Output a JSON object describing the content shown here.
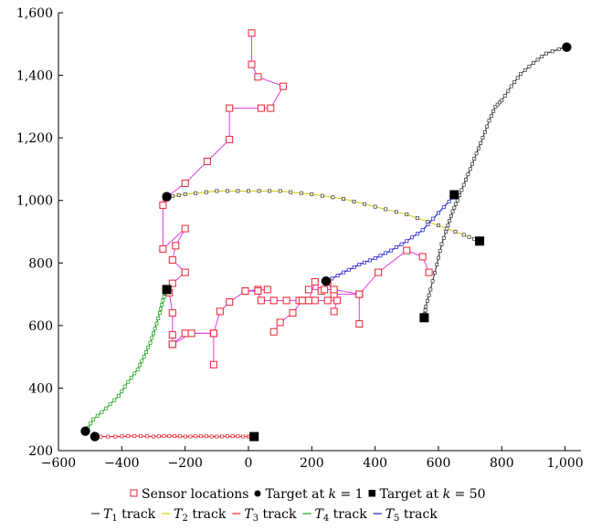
{
  "chart_data": {
    "type": "scatter",
    "title": "",
    "xlabel": "",
    "ylabel": "",
    "xlim": [
      -600,
      1050
    ],
    "ylim": [
      200,
      1600
    ],
    "x_ticks": [
      -600,
      -400,
      -200,
      0,
      200,
      400,
      600,
      800,
      1000
    ],
    "y_ticks": [
      200,
      400,
      600,
      800,
      1000,
      1200,
      1400,
      1600
    ],
    "x_tick_labels": [
      "−600",
      "−400",
      "−200",
      "0",
      "200",
      "400",
      "600",
      "800",
      "1,000"
    ],
    "y_tick_labels": [
      "200",
      "400",
      "600",
      "800",
      "1,000",
      "1,200",
      "1,400",
      "1,600"
    ],
    "grid": false,
    "legend_placement": "bottom",
    "legend": {
      "row1": [
        {
          "label": "Sensor locations",
          "marker": "open-square",
          "color": "#e8212e"
        },
        {
          "label": "Target at",
          "math": "k",
          "eq": " = 1",
          "marker": "filled-circle",
          "color": "#000000"
        },
        {
          "label": "Target at",
          "math": "k",
          "eq": " = 50",
          "marker": "filled-square",
          "color": "#000000"
        }
      ],
      "row2": [
        {
          "name": "T",
          "sub": "1",
          "suffix": " track",
          "color": "#333333"
        },
        {
          "name": "T",
          "sub": "2",
          "suffix": " track",
          "color": "#d4cf16"
        },
        {
          "name": "T",
          "sub": "3",
          "suffix": " track",
          "color": "#e8212e"
        },
        {
          "name": "T",
          "sub": "4",
          "suffix": " track",
          "color": "#12a012"
        },
        {
          "name": "T",
          "sub": "5",
          "suffix": " track",
          "color": "#1515d6"
        }
      ]
    },
    "sensor_paths": {
      "color": "#e8212e",
      "line_color": "#e23be4",
      "paths": [
        [
          [
            10,
            1535
          ],
          [
            10,
            1435
          ],
          [
            30,
            1395
          ],
          [
            110,
            1365
          ],
          [
            70,
            1295
          ],
          [
            40,
            1295
          ],
          [
            -60,
            1295
          ],
          [
            -60,
            1195
          ],
          [
            -130,
            1125
          ],
          [
            -200,
            1055
          ],
          [
            -260,
            1010
          ],
          [
            -270,
            985
          ],
          [
            -270,
            845
          ],
          [
            -200,
            910
          ],
          [
            -230,
            855
          ],
          [
            -240,
            810
          ],
          [
            -200,
            770
          ],
          [
            -240,
            735
          ],
          [
            -250,
            705
          ],
          [
            -240,
            640
          ],
          [
            -240,
            570
          ],
          [
            -240,
            540
          ],
          [
            -200,
            575
          ],
          [
            -110,
            575
          ],
          [
            -110,
            475
          ]
        ],
        [
          [
            -240,
            540
          ],
          [
            -180,
            575
          ],
          [
            -110,
            575
          ],
          [
            -90,
            645
          ],
          [
            -60,
            675
          ],
          [
            -10,
            710
          ],
          [
            30,
            715
          ],
          [
            60,
            715
          ],
          [
            -10,
            710
          ],
          [
            30,
            710
          ],
          [
            40,
            680
          ],
          [
            80,
            680
          ],
          [
            120,
            680
          ],
          [
            160,
            680
          ],
          [
            180,
            680
          ],
          [
            210,
            680
          ],
          [
            250,
            680
          ],
          [
            280,
            680
          ],
          [
            270,
            645
          ]
        ],
        [
          [
            80,
            580
          ],
          [
            100,
            610
          ],
          [
            140,
            640
          ],
          [
            170,
            680
          ],
          [
            190,
            680
          ],
          [
            210,
            740
          ],
          [
            230,
            710
          ],
          [
            250,
            740
          ],
          [
            270,
            700
          ],
          [
            350,
            700
          ],
          [
            410,
            770
          ],
          [
            500,
            840
          ],
          [
            550,
            820
          ],
          [
            570,
            770
          ]
        ],
        [
          [
            190,
            715
          ],
          [
            240,
            715
          ],
          [
            270,
            715
          ],
          [
            350,
            700
          ],
          [
            350,
            605
          ]
        ]
      ]
    },
    "tracks": [
      {
        "name": "T1",
        "color": "#333333",
        "points": [
          [
            555,
            625
          ],
          [
            560,
            660
          ],
          [
            575,
            715
          ],
          [
            595,
            795
          ],
          [
            610,
            860
          ],
          [
            630,
            920
          ],
          [
            645,
            965
          ],
          [
            660,
            1000
          ],
          [
            680,
            1050
          ],
          [
            700,
            1100
          ],
          [
            720,
            1150
          ],
          [
            740,
            1200
          ],
          [
            760,
            1255
          ],
          [
            780,
            1300
          ],
          [
            800,
            1320
          ],
          [
            830,
            1365
          ],
          [
            860,
            1405
          ],
          [
            900,
            1440
          ],
          [
            940,
            1470
          ],
          [
            1000,
            1490
          ]
        ]
      },
      {
        "name": "T2",
        "color": "#d4cf16",
        "points": [
          [
            -260,
            1010
          ],
          [
            -200,
            1020
          ],
          [
            -100,
            1030
          ],
          [
            0,
            1030
          ],
          [
            100,
            1030
          ],
          [
            200,
            1020
          ],
          [
            300,
            1005
          ],
          [
            400,
            980
          ],
          [
            500,
            955
          ],
          [
            600,
            920
          ],
          [
            680,
            890
          ],
          [
            730,
            870
          ]
        ]
      },
      {
        "name": "T3",
        "color": "#e8212e",
        "points": [
          [
            -490,
            245
          ],
          [
            -420,
            245
          ],
          [
            -360,
            247
          ],
          [
            -300,
            245
          ],
          [
            -250,
            247
          ],
          [
            -200,
            245
          ],
          [
            -150,
            246
          ],
          [
            -100,
            245
          ],
          [
            -50,
            246
          ],
          [
            0,
            245
          ],
          [
            15,
            245
          ]
        ]
      },
      {
        "name": "T4",
        "color": "#12a012",
        "points": [
          [
            -515,
            260
          ],
          [
            -490,
            300
          ],
          [
            -450,
            335
          ],
          [
            -410,
            375
          ],
          [
            -380,
            420
          ],
          [
            -350,
            460
          ],
          [
            -330,
            500
          ],
          [
            -310,
            545
          ],
          [
            -295,
            590
          ],
          [
            -280,
            640
          ],
          [
            -270,
            680
          ],
          [
            -260,
            715
          ]
        ]
      },
      {
        "name": "T5",
        "color": "#1515d6",
        "points": [
          [
            245,
            740
          ],
          [
            300,
            770
          ],
          [
            350,
            795
          ],
          [
            400,
            815
          ],
          [
            450,
            840
          ],
          [
            500,
            870
          ],
          [
            550,
            905
          ],
          [
            600,
            960
          ],
          [
            650,
            1015
          ]
        ]
      }
    ],
    "targets_k1": [
      [
        1005,
        1490
      ],
      [
        -258,
        1012
      ],
      [
        -485,
        245
      ],
      [
        -515,
        262
      ],
      [
        245,
        742
      ]
    ],
    "targets_k50": [
      [
        555,
        625
      ],
      [
        730,
        870
      ],
      [
        18,
        245
      ],
      [
        -258,
        715
      ],
      [
        650,
        1018
      ]
    ]
  }
}
